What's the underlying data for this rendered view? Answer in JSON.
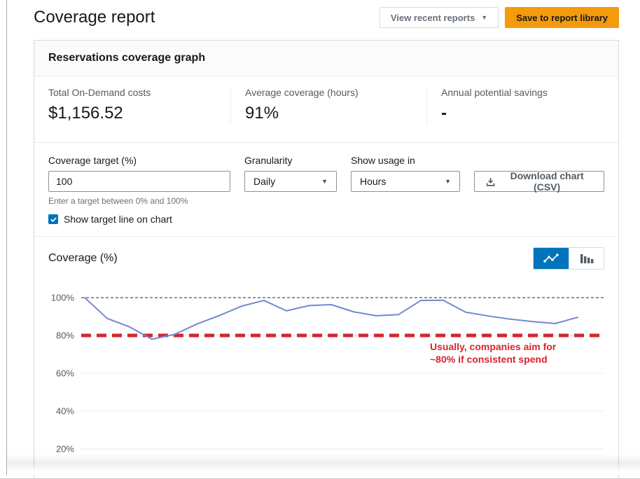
{
  "header": {
    "title": "Coverage report",
    "view_recent_label": "View recent reports",
    "save_label": "Save to report library"
  },
  "panel": {
    "title": "Reservations coverage graph",
    "stats": [
      {
        "label": "Total On-Demand costs",
        "value": "$1,156.52"
      },
      {
        "label": "Average coverage (hours)",
        "value": "91%"
      },
      {
        "label": "Annual potential savings",
        "value": "-"
      }
    ],
    "controls": {
      "coverage_target_label": "Coverage target (%)",
      "coverage_target_value": "100",
      "coverage_target_helper": "Enter a target between 0% and 100%",
      "target_line_checkbox_label": "Show target line on chart",
      "target_line_checkbox_checked": true,
      "granularity_label": "Granularity",
      "granularity_value": "Daily",
      "show_usage_label": "Show usage in",
      "show_usage_value": "Hours",
      "download_label": "Download chart (CSV)"
    }
  },
  "icons": {
    "caret": "▼",
    "line_chart_toggle": "line-chart-icon",
    "bar_chart_toggle": "bar-chart-icon",
    "download": "download-icon",
    "check": "check-icon"
  },
  "colors": {
    "primary_orange": "#f59a0b",
    "aws_blue": "#0073bb",
    "line_blue": "#7488d0",
    "reference_red": "#d6252c",
    "grid_gray": "#eaeded",
    "target_dash_gray": "#6b7280"
  },
  "chart_data": {
    "type": "line",
    "title": "Coverage (%)",
    "x": [
      1,
      2,
      3,
      4,
      5,
      6,
      7,
      8,
      9,
      10,
      11,
      12,
      13,
      14,
      15,
      16,
      17,
      18,
      19,
      20,
      21,
      22,
      23
    ],
    "x_axis_labels_visible": false,
    "series": [
      {
        "name": "Coverage %",
        "color": "#7488d0",
        "values": [
          100,
          89,
          84.5,
          78,
          80.5,
          86,
          90.5,
          95.5,
          98.5,
          93,
          95.8,
          96.3,
          92.5,
          90.4,
          91,
          98.5,
          98.6,
          92.3,
          90.3,
          88.6,
          87.3,
          86.3,
          89.6
        ]
      }
    ],
    "ylim": [
      0,
      100
    ],
    "yticks": [
      {
        "label": "100%",
        "value": 100
      },
      {
        "label": "80%",
        "value": 80
      },
      {
        "label": "60%",
        "value": 60
      },
      {
        "label": "40%",
        "value": 40
      },
      {
        "label": "20%",
        "value": 20
      }
    ],
    "grid": true,
    "legend": "none",
    "target_line": {
      "value": 100,
      "style": "dashed",
      "color": "#6b7280"
    },
    "reference_line": {
      "value": 80,
      "style": "thick-dashed",
      "color": "#d6252c"
    },
    "annotation": {
      "color": "#d6252c",
      "lines": [
        "Usually, companies aim for",
        "~80% if consistent spend"
      ]
    }
  }
}
